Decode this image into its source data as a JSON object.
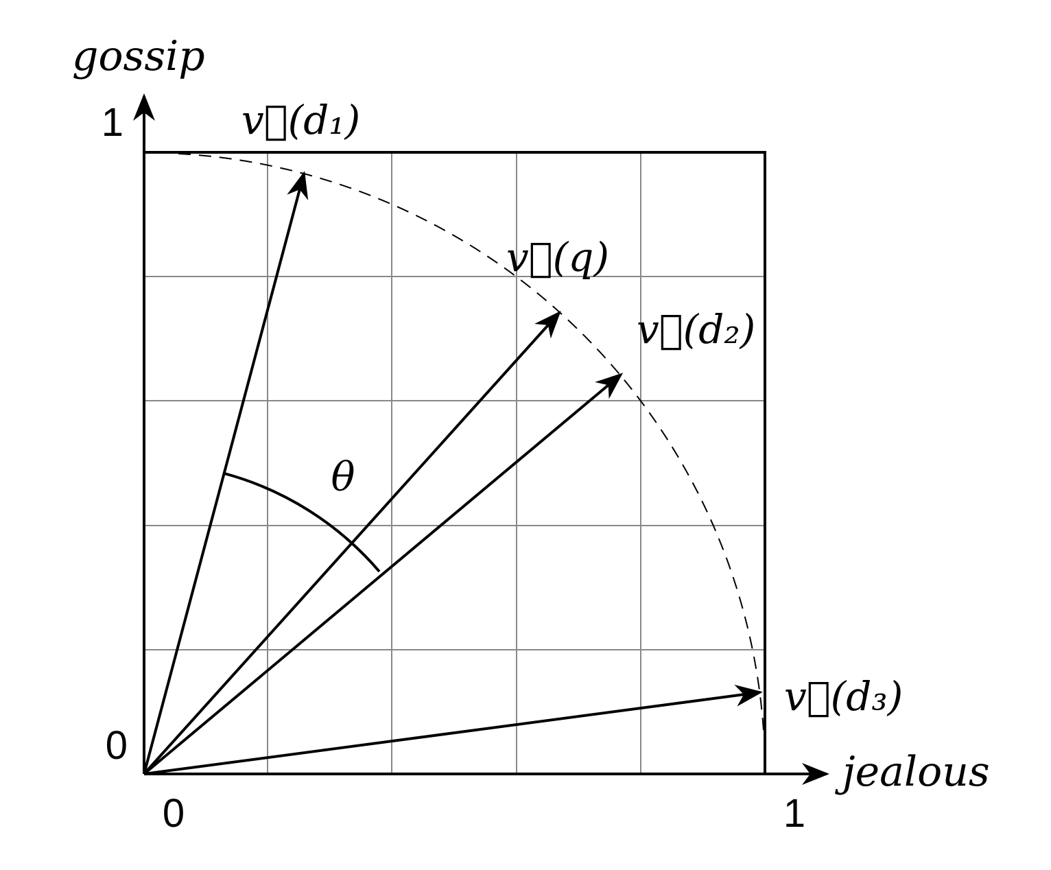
{
  "axes": {
    "y_label": "gossip",
    "x_label": "jealous",
    "y_max": "1",
    "y_min": "0",
    "x_min": "0",
    "x_max": "1"
  },
  "vectors": {
    "d1": "v⃗(d₁)",
    "q": "v⃗(q)",
    "d2": "v⃗(d₂)",
    "d3": "v⃗(d₃)"
  },
  "angle_label": "θ"
}
